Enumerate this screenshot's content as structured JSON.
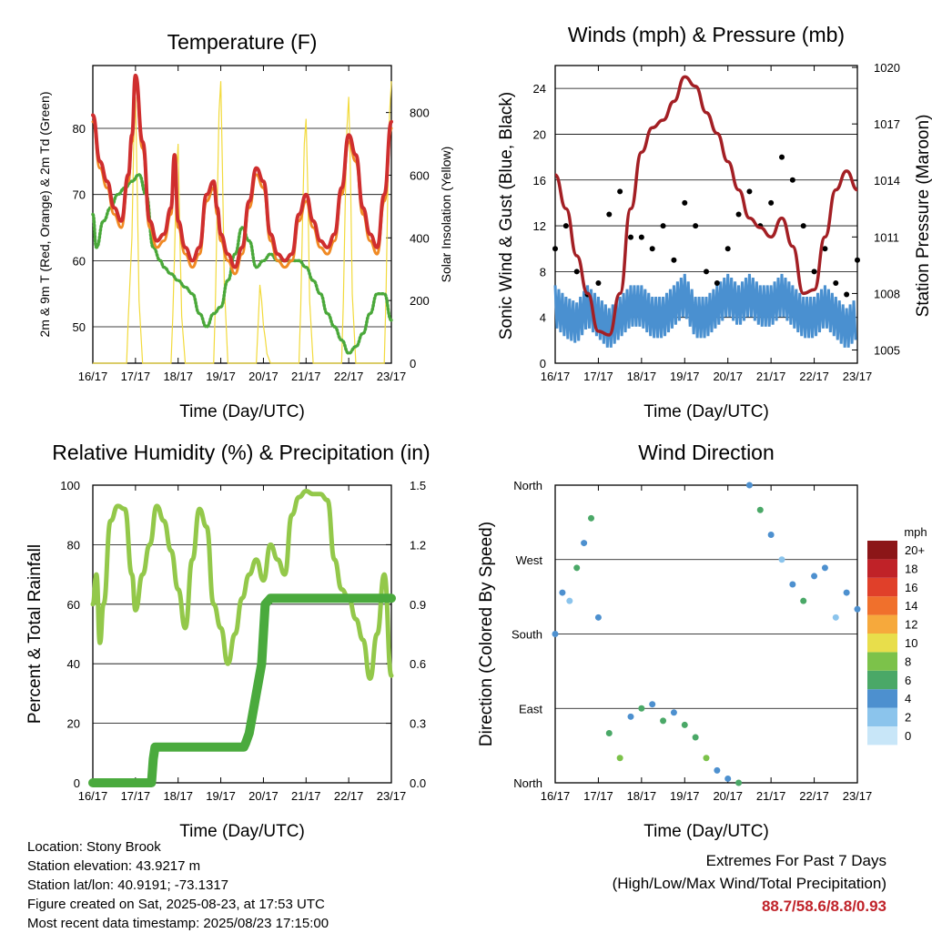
{
  "x_tick_labels": [
    "16/17",
    "17/17",
    "18/17",
    "19/17",
    "20/17",
    "21/17",
    "22/17",
    "23/17"
  ],
  "chart_data": [
    {
      "type": "line",
      "title": "Temperature (F)",
      "xlabel": "Time (Day/UTC)",
      "ylabel": "2m & 9m T (Red, Orange) & 2m Td (Green)",
      "ylabel_right": "Solar Insolation (Yellow)",
      "ylim": [
        44.5,
        89.5
      ],
      "yticks": [
        50,
        60,
        70,
        80
      ],
      "ylim_right": [
        0,
        950
      ],
      "yticks_right": [
        0,
        200,
        400,
        600,
        800
      ],
      "grid": true,
      "x_unit": "hours since 16/17 UTC",
      "series": [
        {
          "name": "2m T",
          "color": "#cf2e2e",
          "axis": "left",
          "x": [
            0,
            4,
            8,
            12,
            16,
            20,
            22,
            24,
            28,
            32,
            36,
            40,
            44,
            46,
            48,
            52,
            56,
            60,
            64,
            68,
            70,
            72,
            76,
            80,
            84,
            88,
            92,
            96,
            100,
            104,
            108,
            112,
            116,
            120,
            124,
            128,
            132,
            136,
            140,
            144,
            148,
            152,
            156,
            160,
            164,
            168
          ],
          "values": [
            82,
            75,
            72,
            68,
            66,
            73,
            79,
            88,
            78,
            66,
            63,
            64,
            68,
            76,
            66,
            62,
            60,
            62,
            70,
            72,
            68,
            64,
            61,
            59,
            62,
            69,
            74,
            72,
            64,
            61,
            60,
            61,
            67,
            70,
            66,
            63,
            62,
            64,
            71,
            79,
            76,
            68,
            64,
            62,
            70,
            81
          ]
        },
        {
          "name": "9m T",
          "color": "#f08a24",
          "axis": "left",
          "x": [
            0,
            4,
            8,
            12,
            16,
            20,
            22,
            24,
            28,
            32,
            36,
            40,
            44,
            46,
            48,
            52,
            56,
            60,
            64,
            68,
            70,
            72,
            76,
            80,
            84,
            88,
            92,
            96,
            100,
            104,
            108,
            112,
            116,
            120,
            124,
            128,
            132,
            136,
            140,
            144,
            148,
            152,
            156,
            160,
            164,
            168
          ],
          "values": [
            81,
            74,
            71,
            67,
            65,
            72,
            78,
            87,
            77,
            65,
            62,
            63,
            67,
            75,
            65,
            61,
            59,
            61,
            69,
            71,
            67,
            63,
            60,
            58,
            61,
            68,
            73,
            71,
            63,
            60,
            59,
            60,
            66,
            69,
            65,
            62,
            61,
            63,
            70,
            78,
            75,
            67,
            63,
            61,
            69,
            80
          ]
        },
        {
          "name": "2m Td",
          "color": "#4aa83a",
          "axis": "left",
          "x": [
            0,
            2,
            6,
            10,
            14,
            18,
            22,
            26,
            30,
            34,
            38,
            40,
            44,
            48,
            52,
            56,
            60,
            64,
            68,
            72,
            76,
            80,
            84,
            88,
            92,
            96,
            100,
            104,
            108,
            112,
            116,
            120,
            124,
            128,
            132,
            136,
            140,
            144,
            148,
            152,
            156,
            160,
            164,
            168
          ],
          "values": [
            67,
            62,
            66,
            68,
            70,
            71,
            72,
            73,
            70,
            62,
            60,
            59,
            58,
            57,
            56,
            55,
            52,
            50,
            52,
            53,
            57,
            61,
            65,
            63,
            59,
            60,
            61,
            60,
            60,
            60,
            60,
            59,
            57,
            55,
            52,
            50,
            48,
            46,
            47,
            49,
            52,
            55,
            55,
            51
          ]
        },
        {
          "name": "Solar Insolation",
          "color": "#f2da3c",
          "axis": "right",
          "x": [
            0,
            3,
            7,
            11,
            15,
            19,
            20,
            22,
            23,
            24,
            25,
            26,
            28,
            30,
            33,
            35,
            37,
            39,
            42,
            44,
            45,
            46,
            47,
            48,
            49,
            50,
            52,
            54,
            57,
            59,
            61,
            63,
            66,
            68,
            69,
            70,
            71,
            72,
            73,
            74,
            76,
            78,
            81,
            83,
            85,
            87,
            90,
            92,
            93,
            94,
            95,
            96,
            97,
            98,
            100,
            102,
            105,
            107,
            109,
            111,
            114,
            116,
            117,
            118,
            119,
            120,
            121,
            122,
            124,
            126,
            129,
            131,
            133,
            135,
            138,
            140,
            141,
            142,
            143,
            144,
            145,
            146,
            148,
            150,
            153,
            155,
            157,
            159,
            162,
            164,
            165,
            166,
            167,
            168
          ],
          "values": [
            0,
            0,
            0,
            0,
            0,
            0,
            150,
            400,
            700,
            850,
            550,
            200,
            0,
            0,
            0,
            0,
            0,
            0,
            0,
            0,
            150,
            350,
            600,
            700,
            400,
            150,
            0,
            0,
            0,
            0,
            0,
            0,
            0,
            0,
            200,
            500,
            800,
            900,
            600,
            250,
            0,
            0,
            0,
            0,
            0,
            0,
            0,
            0,
            120,
            250,
            200,
            120,
            80,
            30,
            0,
            0,
            0,
            0,
            0,
            0,
            0,
            0,
            180,
            450,
            700,
            780,
            550,
            200,
            0,
            0,
            0,
            0,
            0,
            0,
            0,
            0,
            200,
            500,
            750,
            850,
            600,
            220,
            0,
            0,
            0,
            0,
            0,
            0,
            0,
            0,
            220,
            550,
            800,
            900
          ]
        }
      ]
    },
    {
      "type": "scatter",
      "title": "Winds (mph) & Pressure (mb)",
      "xlabel": "Time (Day/UTC)",
      "ylabel": "Sonic Wind & Gust (Blue, Black)",
      "ylabel_right": "Station Pressure (Maroon)",
      "ylim": [
        0,
        26
      ],
      "yticks": [
        0,
        4,
        8,
        12,
        16,
        20,
        24
      ],
      "ylim_right": [
        1004.3,
        1020.1
      ],
      "yticks_right": [
        1005,
        1008,
        1011,
        1014,
        1017,
        1020
      ],
      "grid": true,
      "series": [
        {
          "name": "Sonic Wind",
          "color": "#4a90d0",
          "type": "line",
          "axis": "left",
          "x": [
            0,
            6,
            12,
            18,
            24,
            30,
            36,
            42,
            48,
            54,
            60,
            66,
            72,
            78,
            84,
            90,
            96,
            102,
            108,
            114,
            120,
            126,
            132,
            138,
            144,
            150,
            156,
            162,
            168
          ],
          "values": [
            5,
            4,
            3.5,
            5,
            4,
            3,
            4,
            5,
            5,
            4,
            4,
            5,
            6,
            4,
            4,
            5,
            6,
            5,
            6,
            5,
            5,
            6,
            5,
            4,
            4,
            5,
            4,
            3,
            4
          ]
        },
        {
          "name": "Gust",
          "color": "#000000",
          "type": "scatter",
          "axis": "left",
          "x": [
            0,
            6,
            12,
            18,
            24,
            30,
            36,
            42,
            48,
            54,
            60,
            66,
            72,
            78,
            84,
            90,
            96,
            102,
            108,
            114,
            120,
            126,
            132,
            138,
            144,
            150,
            156,
            162,
            168
          ],
          "values": [
            10,
            12,
            8,
            6,
            7,
            13,
            15,
            11,
            11,
            10,
            12,
            9,
            14,
            12,
            8,
            7,
            10,
            13,
            15,
            12,
            14,
            18,
            16,
            12,
            8,
            10,
            7,
            6,
            9
          ]
        },
        {
          "name": "Station Pressure",
          "color": "#a31f24",
          "type": "line",
          "axis": "right",
          "x": [
            0,
            6,
            12,
            18,
            24,
            30,
            36,
            42,
            48,
            54,
            60,
            66,
            72,
            78,
            84,
            90,
            96,
            102,
            108,
            114,
            120,
            126,
            132,
            138,
            144,
            150,
            156,
            162,
            168
          ],
          "values": [
            1014.3,
            1012.5,
            1010,
            1008,
            1006,
            1005.8,
            1008,
            1012.5,
            1015.5,
            1016.8,
            1017.2,
            1018.2,
            1019.5,
            1019,
            1017.6,
            1016.5,
            1015,
            1013.5,
            1012,
            1011.5,
            1011,
            1012,
            1010.5,
            1008,
            1008.2,
            1011,
            1013.5,
            1014.5,
            1013.5
          ]
        }
      ]
    },
    {
      "type": "line",
      "title": "Relative Humidity (%) & Precipitation (in)",
      "xlabel": "Time (Day/UTC)",
      "ylabel": "Percent & Total Rainfall",
      "ylim": [
        0,
        100
      ],
      "yticks": [
        0,
        20,
        40,
        60,
        80,
        100
      ],
      "ylim_right": [
        0,
        1.5
      ],
      "yticks_right": [
        "0.0",
        "0.3",
        "0.6",
        "0.9",
        "1.2",
        "1.5"
      ],
      "grid": true,
      "series": [
        {
          "name": "Relative Humidity",
          "color": "#93c84a",
          "axis": "left",
          "x": [
            0,
            2,
            4,
            6,
            10,
            14,
            18,
            22,
            24,
            28,
            32,
            36,
            40,
            44,
            48,
            52,
            56,
            60,
            64,
            68,
            72,
            76,
            80,
            84,
            88,
            92,
            96,
            100,
            104,
            108,
            112,
            116,
            120,
            124,
            128,
            132,
            136,
            140,
            144,
            148,
            152,
            156,
            160,
            164,
            168
          ],
          "values": [
            60,
            70,
            47,
            60,
            88,
            93,
            92,
            70,
            58,
            70,
            80,
            93,
            88,
            78,
            65,
            52,
            75,
            92,
            86,
            60,
            52,
            40,
            50,
            62,
            70,
            75,
            68,
            80,
            75,
            70,
            90,
            96,
            98,
            97,
            97,
            95,
            75,
            65,
            62,
            55,
            48,
            35,
            50,
            70,
            36
          ]
        },
        {
          "name": "Precipitation",
          "color": "#4aaa3d",
          "axis": "right",
          "x": [
            0,
            25,
            33,
            34,
            35,
            45,
            60,
            75,
            85,
            86,
            88,
            90,
            92,
            94,
            95,
            96,
            97,
            99,
            100,
            105,
            115,
            125,
            135,
            145,
            155,
            168
          ],
          "values": [
            0,
            0,
            0,
            0.12,
            0.18,
            0.18,
            0.18,
            0.18,
            0.18,
            0.2,
            0.25,
            0.35,
            0.45,
            0.55,
            0.6,
            0.75,
            0.9,
            0.92,
            0.93,
            0.93,
            0.93,
            0.93,
            0.93,
            0.93,
            0.93,
            0.93
          ]
        }
      ]
    },
    {
      "type": "scatter",
      "title": "Wind Direction",
      "xlabel": "Time (Day/UTC)",
      "ylabel": "Direction (Colored By Speed)",
      "ylim_degrees": [
        0,
        360
      ],
      "ytick_labels": [
        "North",
        "East",
        "South",
        "West",
        "North"
      ],
      "grid": true,
      "colorbar": {
        "title": "mph",
        "labels": [
          "0",
          "2",
          "4",
          "6",
          "8",
          "10",
          "12",
          "14",
          "16",
          "18",
          "20+"
        ],
        "colors": [
          "#c8e6f8",
          "#8bc4ec",
          "#4d90cf",
          "#4aa867",
          "#7cc24a",
          "#e8de4b",
          "#f6a93c",
          "#f0702c",
          "#e0402a",
          "#c02228",
          "#8c1618"
        ]
      },
      "x": [
        0,
        4,
        8,
        12,
        16,
        20,
        24,
        30,
        36,
        42,
        48,
        54,
        60,
        66,
        72,
        78,
        84,
        90,
        96,
        102,
        108,
        114,
        120,
        126,
        132,
        138,
        144,
        150,
        156,
        162,
        168
      ],
      "values": [
        180,
        230,
        220,
        260,
        290,
        320,
        200,
        60,
        30,
        80,
        90,
        95,
        75,
        85,
        70,
        55,
        30,
        15,
        5,
        0,
        360,
        330,
        300,
        270,
        240,
        220,
        250,
        260,
        200,
        230,
        210
      ],
      "speeds": [
        4,
        3,
        2,
        5,
        3,
        6,
        4,
        5,
        7,
        4,
        6,
        3,
        5,
        4,
        6,
        5,
        7,
        4,
        3,
        6,
        4,
        5,
        3,
        2,
        4,
        5,
        3,
        4,
        2,
        3,
        4
      ]
    }
  ],
  "info": {
    "location": "Location: Stony Brook",
    "elevation": "Station elevation: 43.9217 m",
    "latlon": "Station lat/lon: 40.9191; -73.1317",
    "created": "Figure created on Sat, 2025-08-23, at 17:53 UTC",
    "latest": "Most recent data timestamp: 2025/08/23 17:15:00"
  },
  "extremes": {
    "heading": "Extremes For Past 7 Days",
    "subheading": "(High/Low/Max Wind/Total Precipitation)",
    "values": "88.7/58.6/8.8/0.93"
  }
}
